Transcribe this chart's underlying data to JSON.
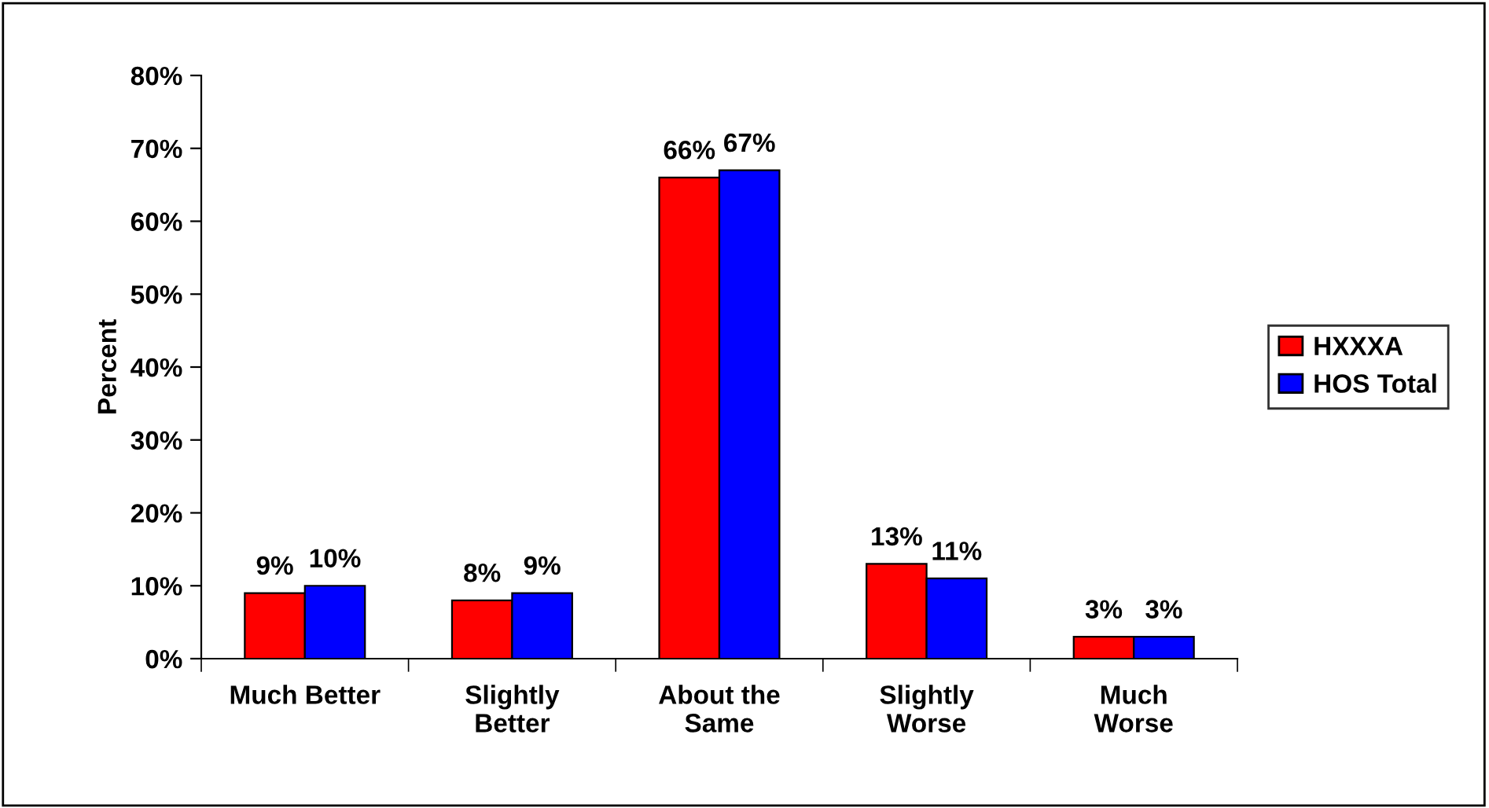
{
  "chart_data": {
    "type": "bar",
    "ylabel": "Percent",
    "categories": [
      "Much Better",
      "Slightly\nBetter",
      "About the\nSame",
      "Slightly\nWorse",
      "Much\nWorse"
    ],
    "series": [
      {
        "name": "HXXXA",
        "color": "#ff0000",
        "values": [
          9,
          8,
          66,
          13,
          3
        ],
        "value_labels": [
          "9%",
          "8%",
          "66%",
          "13%",
          "3%"
        ]
      },
      {
        "name": "HOS Total",
        "color": "#0000ff",
        "values": [
          10,
          9,
          67,
          11,
          3
        ],
        "value_labels": [
          "10%",
          "9%",
          "67%",
          "11%",
          "3%"
        ]
      }
    ],
    "ylim": [
      0,
      80
    ],
    "yticks": [
      {
        "value": 0,
        "label": "0%"
      },
      {
        "value": 10,
        "label": "10%"
      },
      {
        "value": 20,
        "label": "20%"
      },
      {
        "value": 30,
        "label": "30%"
      },
      {
        "value": 40,
        "label": "40%"
      },
      {
        "value": 50,
        "label": "50%"
      },
      {
        "value": 60,
        "label": "60%"
      },
      {
        "value": 70,
        "label": "70%"
      },
      {
        "value": 80,
        "label": "80%"
      }
    ],
    "grid": false,
    "legend": "right"
  }
}
